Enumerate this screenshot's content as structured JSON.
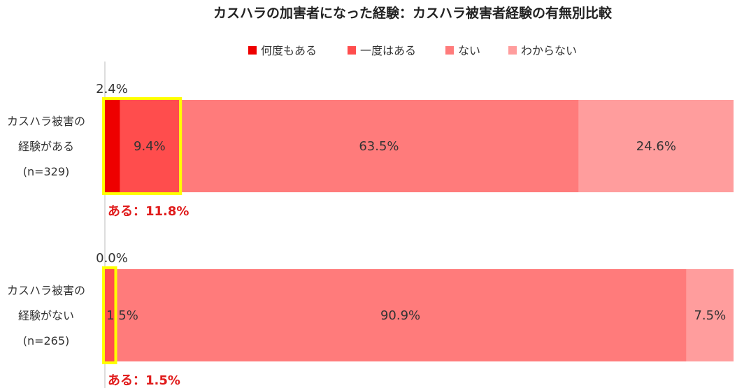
{
  "chart_data": {
    "type": "bar",
    "orientation": "horizontal",
    "stacked": true,
    "percent_stacked": true,
    "title": "カスハラの加害者になった経験：カスハラ被害者経験の有無別比較",
    "xlim": [
      0,
      100
    ],
    "grid": false,
    "legend_position": "top",
    "categories": [
      {
        "lines": [
          "カスハラ被害の",
          "経験がある",
          "(n=329)"
        ]
      },
      {
        "lines": [
          "カスハラ被害の",
          "経験がない",
          "(n=265)"
        ]
      }
    ],
    "series": [
      {
        "name": "何度もある",
        "color": "#ee0000",
        "values": [
          2.4,
          0.0
        ],
        "labels": [
          "2.4%",
          "0.0%"
        ]
      },
      {
        "name": "一度はある",
        "color": "#ff4d4d",
        "values": [
          9.4,
          1.5
        ],
        "labels": [
          "9.4%",
          "1.5%"
        ]
      },
      {
        "name": "ない",
        "color": "#ff7b7b",
        "values": [
          63.5,
          90.9
        ],
        "labels": [
          "63.5%",
          "90.9%"
        ]
      },
      {
        "name": "わからない",
        "color": "#ff9d9d",
        "values": [
          24.6,
          7.5
        ],
        "labels": [
          "24.6%",
          "7.5%"
        ]
      }
    ],
    "annotations": [
      {
        "category_index": 0,
        "text": "ある：11.8%",
        "highlight_series": [
          0,
          1
        ],
        "highlight_color": "#ffff00"
      },
      {
        "category_index": 1,
        "text": "ある：1.5%",
        "highlight_series": [
          0,
          1
        ],
        "highlight_color": "#ffff00"
      }
    ]
  }
}
